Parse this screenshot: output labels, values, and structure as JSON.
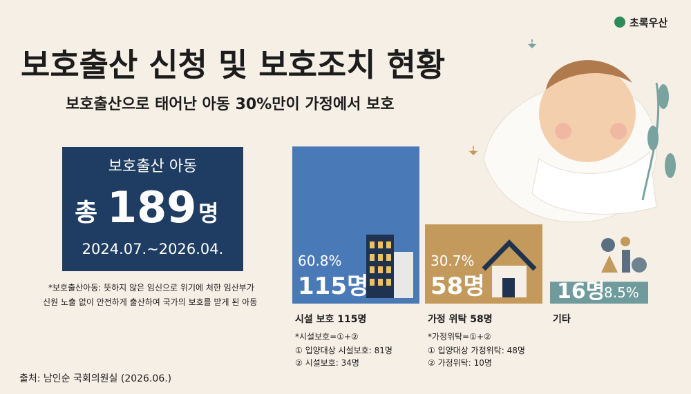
{
  "brand": "초록우산",
  "title": "보호출산 신청 및 보호조치 현황",
  "subtitle": "보호출산으로 태어난 아동 30%만이 가정에서 보호",
  "summary": {
    "heading": "보호출산 아동",
    "prefix": "총",
    "total": 189,
    "unit": "명",
    "period": "2024.07.~2026.04."
  },
  "definition": [
    "*보호출산아동: 뜻하지 않은 임신으로 위기에 처한 임산부가",
    "신원 노출 없이 안전하게 출산하여 국가의 보호를 받게 된 아동"
  ],
  "chart_data": {
    "type": "bar",
    "categories": [
      "시설 보호 115명",
      "가정 위탁 58명",
      "기타"
    ],
    "values": [
      115,
      58,
      16
    ],
    "value_labels": [
      "115명",
      "58명",
      "16명"
    ],
    "share_labels": [
      "60.8%",
      "30.7%",
      "8.5%"
    ],
    "colors": [
      "#4a79b8",
      "#c39a5c",
      "#6f9b9c"
    ]
  },
  "breakdowns": [
    {
      "formula": "*시설보호=①+②",
      "items": [
        "① 입양대상 시설보호: 81명",
        "② 시설보호: 34명"
      ]
    },
    {
      "formula": "*가정위탁=①+②",
      "items": [
        "① 입양대상 가정위탁: 48명",
        "② 가정위탁: 10명"
      ]
    }
  ],
  "source": "출처: 남인순 국회의원실 (2026.06.)"
}
